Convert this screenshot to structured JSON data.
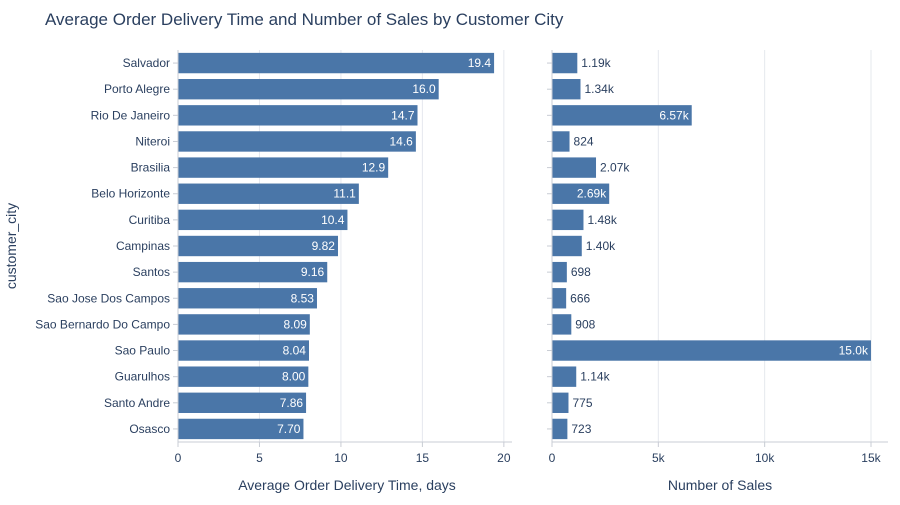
{
  "chart_data": {
    "type": "bar",
    "orientation": "horizontal",
    "title": "Average Order Delivery Time and Number of Sales by Customer City",
    "ylabel": "customer_city",
    "categories": [
      "Salvador",
      "Porto Alegre",
      "Rio De Janeiro",
      "Niteroi",
      "Brasilia",
      "Belo Horizonte",
      "Curitiba",
      "Campinas",
      "Santos",
      "Sao Jose Dos Campos",
      "Sao Bernardo Do Campo",
      "Sao Paulo",
      "Guarulhos",
      "Santo Andre",
      "Osasco"
    ],
    "panels": [
      {
        "name": "delivery",
        "xlabel": "Average Order Delivery Time, days",
        "xlim": [
          0,
          20.5
        ],
        "xticks": [
          0,
          5,
          10,
          15,
          20
        ],
        "xtick_labels": [
          "0",
          "5",
          "10",
          "15",
          "20"
        ],
        "values": [
          19.4,
          16.0,
          14.7,
          14.6,
          12.9,
          11.1,
          10.4,
          9.82,
          9.16,
          8.53,
          8.09,
          8.04,
          8.0,
          7.86,
          7.7
        ],
        "labels": [
          "19.4",
          "16.0",
          "14.7",
          "14.6",
          "12.9",
          "11.1",
          "10.4",
          "9.82",
          "9.16",
          "8.53",
          "8.09",
          "8.04",
          "8.00",
          "7.86",
          "7.70"
        ]
      },
      {
        "name": "sales",
        "xlabel": "Number of Sales",
        "xlim": [
          0,
          15800
        ],
        "xticks": [
          0,
          5000,
          10000,
          15000
        ],
        "xtick_labels": [
          "0",
          "5k",
          "10k",
          "15k"
        ],
        "values": [
          1190,
          1340,
          6570,
          824,
          2070,
          2690,
          1480,
          1400,
          698,
          666,
          908,
          15000,
          1140,
          775,
          723
        ],
        "labels": [
          "1.19k",
          "1.34k",
          "6.57k",
          "824",
          "2.07k",
          "2.69k",
          "1.48k",
          "1.40k",
          "698",
          "666",
          "908",
          "15.0k",
          "1.14k",
          "775",
          "723"
        ]
      }
    ],
    "bar_color": "#4a76a8",
    "grid": true
  }
}
